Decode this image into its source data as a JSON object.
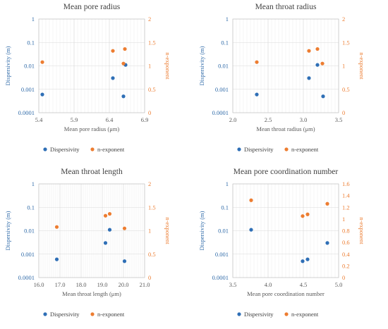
{
  "colors": {
    "dispersivity": "#2f6fb6",
    "n_exponent": "#ed7d31",
    "grid": "#d9d9d9"
  },
  "chart_data": [
    {
      "type": "scatter",
      "title": "Mean pore radius",
      "xlabel": "Mean pore radius (μm)",
      "ylabel_left": "Dispersivity (m)",
      "ylabel_right": "n-exponent",
      "xlim": [
        5.4,
        6.9
      ],
      "xticks": [
        "5.4",
        "5.9",
        "6.4",
        "6.9"
      ],
      "ylim_left": [
        0.0001,
        1
      ],
      "yscale_left": "log",
      "yticks_left": [
        "1",
        "0.1",
        "0.01",
        "0.001",
        "0.0001"
      ],
      "ylim_right": [
        0,
        2
      ],
      "yticks_right": [
        "2",
        "1.5",
        "1",
        "0.5",
        "0"
      ],
      "legend": [
        "Dispersivity",
        "n-exponent"
      ],
      "legend_position": "bottom",
      "grid": true,
      "series": [
        {
          "name": "Dispersivity",
          "axis": "left",
          "x": [
            5.45,
            6.45,
            6.6,
            6.63
          ],
          "y": [
            0.0006,
            0.003,
            0.0005,
            0.011
          ]
        },
        {
          "name": "n-exponent",
          "axis": "right",
          "x": [
            5.45,
            6.45,
            6.6,
            6.62
          ],
          "y": [
            1.08,
            1.32,
            1.05,
            1.36
          ]
        }
      ]
    },
    {
      "type": "scatter",
      "title": "Mean throat radius",
      "xlabel": "Mean throat radius (μm)",
      "ylabel_left": "Dispersivity (m)",
      "ylabel_right": "n-exponent",
      "xlim": [
        2.0,
        3.5
      ],
      "xticks": [
        "2.0",
        "2.5",
        "3.0",
        "3.5"
      ],
      "ylim_left": [
        0.0001,
        1
      ],
      "yscale_left": "log",
      "yticks_left": [
        "1",
        "0.1",
        "0.01",
        "0.001",
        "0.0001"
      ],
      "ylim_right": [
        0,
        2
      ],
      "yticks_right": [
        "2",
        "1.5",
        "1",
        "0.5",
        "0"
      ],
      "legend": [
        "Dispersivity",
        "n-exponent"
      ],
      "legend_position": "bottom",
      "grid": true,
      "series": [
        {
          "name": "Dispersivity",
          "axis": "left",
          "x": [
            2.34,
            3.08,
            3.2,
            3.28
          ],
          "y": [
            0.0006,
            0.003,
            0.011,
            0.0005
          ]
        },
        {
          "name": "n-exponent",
          "axis": "right",
          "x": [
            2.34,
            3.08,
            3.2,
            3.27
          ],
          "y": [
            1.08,
            1.32,
            1.36,
            1.05
          ]
        }
      ]
    },
    {
      "type": "scatter",
      "title": "Mean throat length",
      "xlabel": "Mean throat length (μm)",
      "ylabel_left": "Dispersivity (m)",
      "ylabel_right": "n-exponent",
      "xlim": [
        16.0,
        21.0
      ],
      "xticks": [
        "16.0",
        "17.0",
        "18.0",
        "19.0",
        "20.0",
        "21.0"
      ],
      "ylim_left": [
        0.0001,
        1
      ],
      "yscale_left": "log",
      "yticks_left": [
        "1",
        "0.1",
        "0.01",
        "0.001",
        "0.0001"
      ],
      "ylim_right": [
        0,
        2
      ],
      "yticks_right": [
        "2",
        "1.5",
        "1",
        "0.5",
        "0"
      ],
      "legend": [
        "Dispersivity",
        "n-exponent"
      ],
      "legend_position": "bottom",
      "grid": true,
      "series": [
        {
          "name": "Dispersivity",
          "axis": "left",
          "x": [
            16.85,
            19.15,
            19.35,
            20.05
          ],
          "y": [
            0.0006,
            0.003,
            0.011,
            0.0005
          ]
        },
        {
          "name": "n-exponent",
          "axis": "right",
          "x": [
            16.85,
            19.15,
            19.35,
            20.05
          ],
          "y": [
            1.08,
            1.32,
            1.36,
            1.05
          ]
        }
      ]
    },
    {
      "type": "scatter",
      "title": "Mean pore coordination number",
      "xlabel": "Mean pore coordination number",
      "ylabel_left": "Dispersivity (m)",
      "ylabel_right": "n-exponent",
      "xlim": [
        3.5,
        5.0
      ],
      "xticks": [
        "3.5",
        "4.0",
        "4.5",
        "5.0"
      ],
      "ylim_left": [
        0.0001,
        1
      ],
      "yscale_left": "log",
      "yticks_left": [
        "1",
        "0.1",
        "0.01",
        "0.001",
        "0.0001"
      ],
      "ylim_right": [
        0,
        1.6
      ],
      "yticks_right": [
        "1.6",
        "1.4",
        "1.2",
        "1",
        "0.8",
        "0.6",
        "0.4",
        "0.2",
        "0"
      ],
      "legend": [
        "Dispersivity",
        "n-exponent"
      ],
      "legend_position": "bottom",
      "grid": true,
      "series": [
        {
          "name": "Dispersivity",
          "axis": "left",
          "x": [
            3.76,
            4.49,
            4.56,
            4.84
          ],
          "y": [
            0.011,
            0.0005,
            0.0006,
            0.003
          ]
        },
        {
          "name": "n-exponent",
          "axis": "right",
          "x": [
            3.76,
            4.49,
            4.56,
            4.84
          ],
          "y": [
            1.32,
            1.05,
            1.08,
            1.26
          ]
        }
      ]
    }
  ]
}
